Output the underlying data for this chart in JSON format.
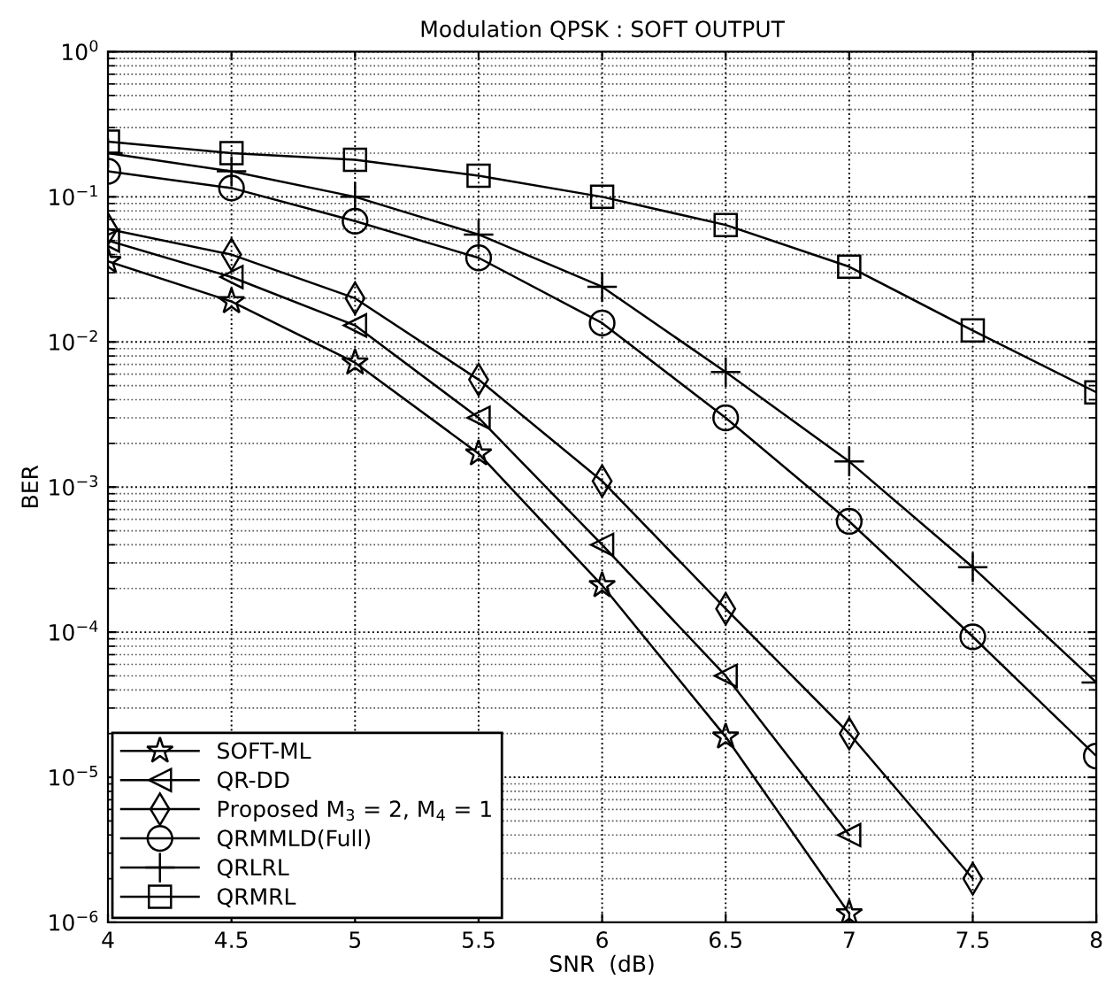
{
  "chart_data": {
    "type": "line",
    "title": "Modulation QPSK : SOFT OUTPUT",
    "xlabel": "SNR  (dB)",
    "ylabel": "BER",
    "x": [
      4,
      4.5,
      5,
      5.5,
      6,
      6.5,
      7,
      7.5,
      8
    ],
    "series": [
      {
        "name": "SOFT-ML",
        "color": "#000000",
        "marker": "star",
        "values": [
          0.036,
          0.019,
          0.0072,
          0.0017,
          0.00021,
          1.9e-05,
          1.15e-06,
          null,
          null
        ]
      },
      {
        "name": "QR-DD",
        "color": "#000000",
        "marker": "triangle",
        "values": [
          0.05,
          0.028,
          0.013,
          0.003,
          0.0004,
          5e-05,
          4e-06,
          null,
          null
        ]
      },
      {
        "name": "Proposed M$_{3}$ = 2, M$_{4}$ = 1",
        "color": "#000000",
        "marker": "diamond",
        "values": [
          0.06,
          0.04,
          0.02,
          0.0055,
          0.0011,
          0.000145,
          2e-05,
          2e-06,
          null
        ]
      },
      {
        "name": "QRMMLD(Full)",
        "color": "#000000",
        "marker": "circle",
        "values": [
          0.15,
          0.115,
          0.068,
          0.038,
          0.0135,
          0.003,
          0.00058,
          9.3e-05,
          1.4e-05
        ]
      },
      {
        "name": "QRLRL",
        "color": "#000000",
        "marker": "cross",
        "values": [
          0.2,
          0.15,
          0.1,
          0.055,
          0.024,
          0.0062,
          0.0015,
          0.00028,
          4.5e-05
        ]
      },
      {
        "name": "QRMRL",
        "color": "#000000",
        "marker": "square",
        "values": [
          0.24,
          0.2,
          0.18,
          0.14,
          0.1,
          0.064,
          0.033,
          0.012,
          0.0045
        ]
      }
    ],
    "log": "y",
    "xlim": [
      4,
      8
    ],
    "ylim": [
      1e-06,
      1
    ],
    "xticks": [
      4,
      4.5,
      5,
      5.5,
      6,
      6.5,
      7,
      7.5,
      8
    ],
    "yticks": [
      {
        "value": 1e-06,
        "label": "10$^{−6}$"
      },
      {
        "value": 1e-05,
        "label": "10$^{−5}$"
      },
      {
        "value": 0.0001,
        "label": "10$^{−4}$"
      },
      {
        "value": 0.001,
        "label": "10$^{−3}$"
      },
      {
        "value": 0.01,
        "label": "10$^{−2}$"
      },
      {
        "value": 0.1,
        "label": "10$^{−1}$"
      },
      {
        "value": 1,
        "label": "10$^{0}$"
      }
    ],
    "grid": true,
    "legend": "bottom left",
    "line_style": "solid"
  }
}
